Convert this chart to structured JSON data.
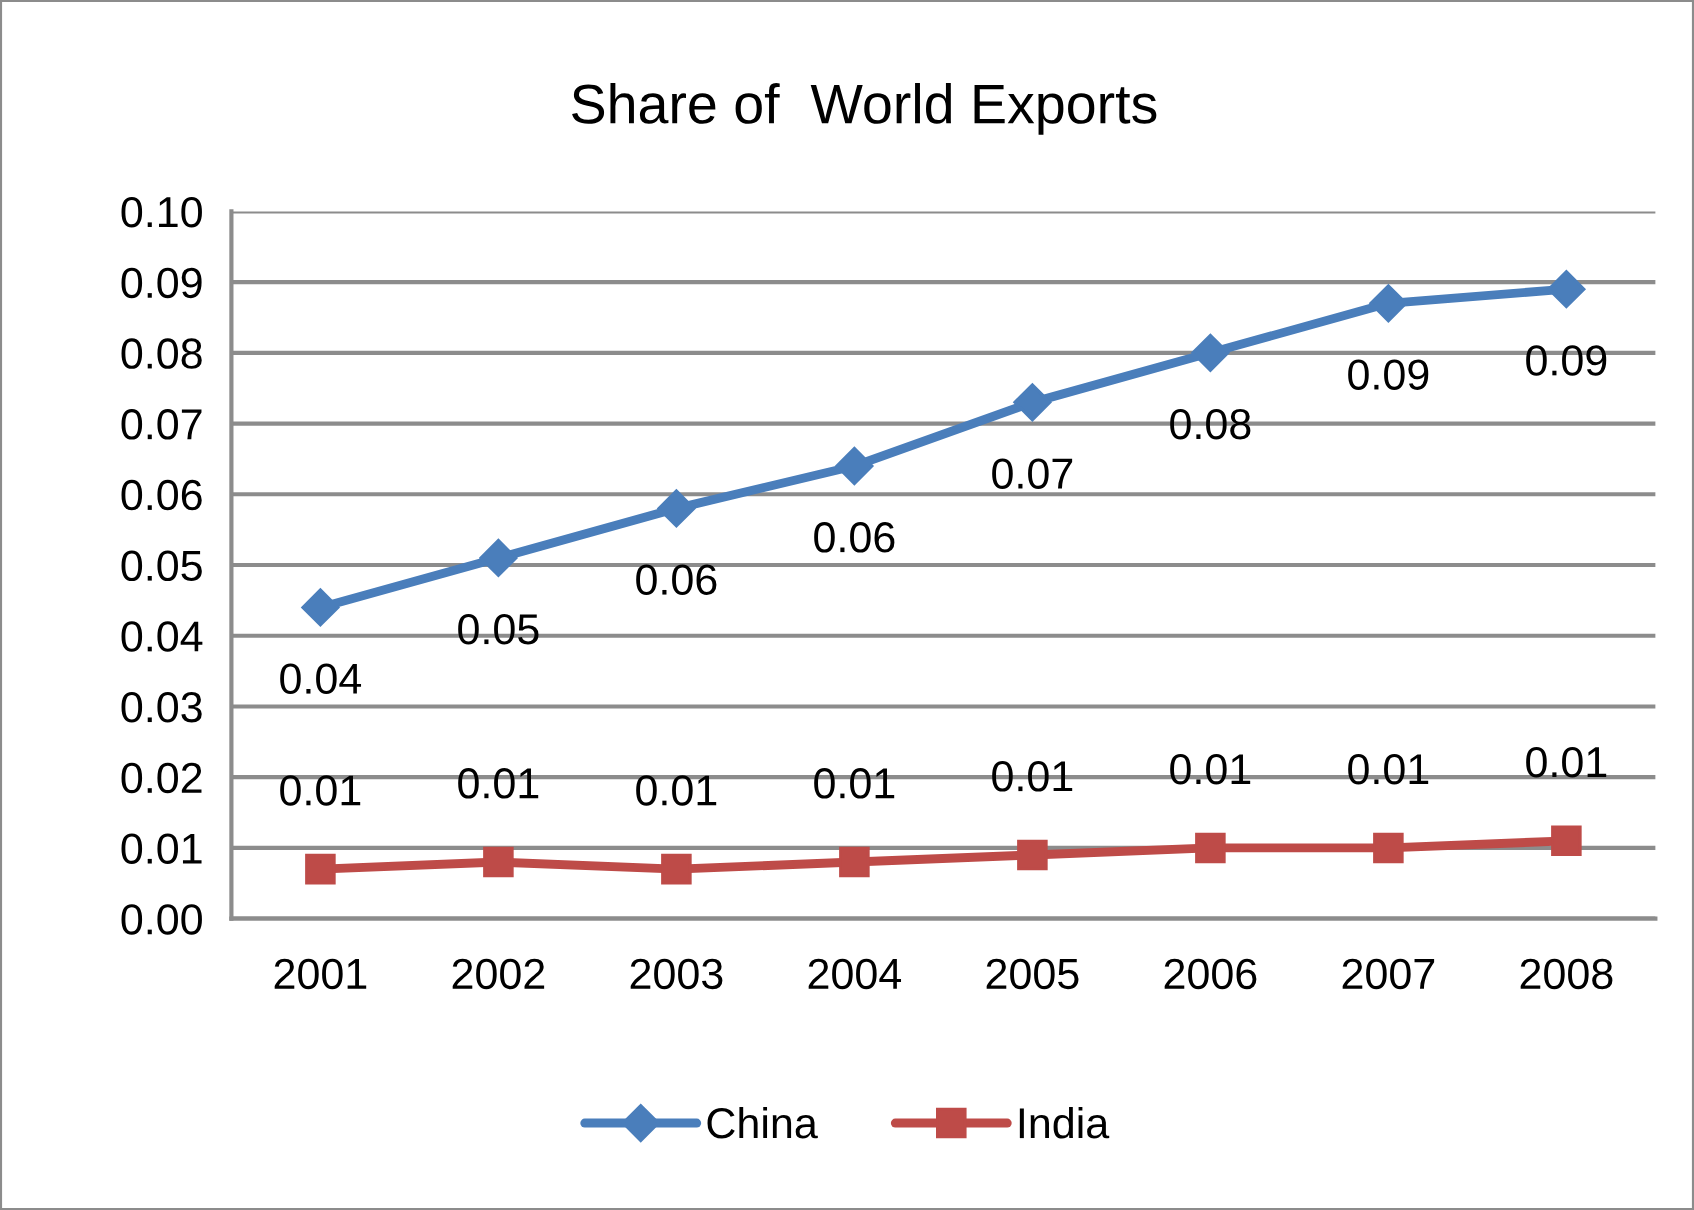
{
  "chart_data": {
    "type": "line",
    "title": "Share of  World Exports",
    "categories": [
      "2001",
      "2002",
      "2003",
      "2004",
      "2005",
      "2006",
      "2007",
      "2008"
    ],
    "series": [
      {
        "name": "China",
        "color": "#4a7ebb",
        "marker": "diamond",
        "values": [
          0.044,
          0.051,
          0.058,
          0.064,
          0.073,
          0.08,
          0.087,
          0.089
        ],
        "value_labels": [
          "0.04",
          "0.05",
          "0.06",
          "0.06",
          "0.07",
          "0.08",
          "0.09",
          "0.09"
        ]
      },
      {
        "name": "India",
        "color": "#be4b48",
        "marker": "square",
        "values": [
          0.007,
          0.008,
          0.007,
          0.008,
          0.009,
          0.01,
          0.01,
          0.011
        ],
        "value_labels": [
          "0.01",
          "0.01",
          "0.01",
          "0.01",
          "0.01",
          "0.01",
          "0.01",
          "0.01"
        ]
      }
    ],
    "ylim": [
      0,
      0.1
    ],
    "yticks": [
      {
        "value": 0,
        "label": "0.00"
      },
      {
        "value": 0.01,
        "label": "0.01"
      },
      {
        "value": 0.02,
        "label": "0.02"
      },
      {
        "value": 0.03,
        "label": "0.03"
      },
      {
        "value": 0.04,
        "label": "0.04"
      },
      {
        "value": 0.05,
        "label": "0.05"
      },
      {
        "value": 0.06,
        "label": "0.06"
      },
      {
        "value": 0.07,
        "label": "0.07"
      },
      {
        "value": 0.08,
        "label": "0.08"
      },
      {
        "value": 0.09,
        "label": "0.09"
      },
      {
        "value": 0.1,
        "label": "0.10"
      }
    ],
    "grid": "y",
    "legend": "bottom",
    "line_style": "solid"
  }
}
